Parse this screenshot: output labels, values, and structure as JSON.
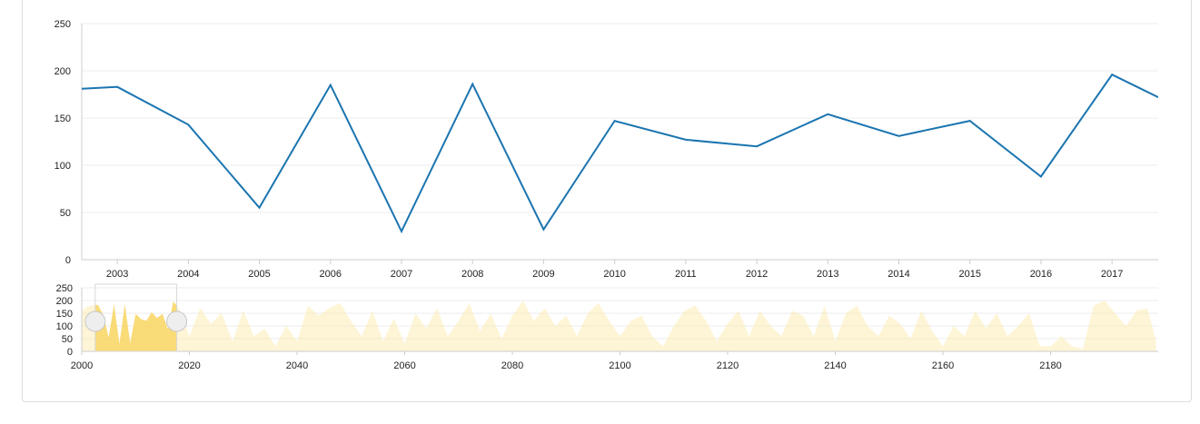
{
  "colors": {
    "line": "#1b75b0",
    "grid": "#ececec",
    "axis": "#cccccc",
    "brush_fill": "#fce8a6",
    "brush_selection": "#f8d45a",
    "handle": "#eeeeee"
  },
  "chart_data": [
    {
      "type": "line",
      "title": "",
      "xlabel": "",
      "ylabel": "",
      "ylim": [
        0,
        250
      ],
      "xlim": [
        2002.5,
        2017.65
      ],
      "yticks": [
        "0",
        "50",
        "100",
        "150",
        "200",
        "250"
      ],
      "xticks": [
        "2003",
        "2004",
        "2005",
        "2006",
        "2007",
        "2008",
        "2009",
        "2010",
        "2011",
        "2012",
        "2013",
        "2014",
        "2015",
        "2016",
        "2017"
      ],
      "grid": true,
      "series": [
        {
          "x": [
            2002.5,
            2003,
            2004,
            2005,
            2006,
            2007,
            2008,
            2009,
            2010,
            2011,
            2012,
            2013,
            2014,
            2015,
            2016,
            2017,
            2017.65
          ],
          "values": [
            181,
            183,
            143,
            55,
            185,
            30,
            186,
            32,
            147,
            127,
            120,
            154,
            131,
            147,
            88,
            196,
            172
          ]
        }
      ]
    },
    {
      "type": "area",
      "title": "",
      "xlabel": "",
      "ylabel": "",
      "ylim": [
        0,
        250
      ],
      "xlim": [
        2000,
        2200
      ],
      "yticks": [
        "0",
        "50",
        "100",
        "150",
        "200",
        "250"
      ],
      "xticks": [
        "2000",
        "2020",
        "2040",
        "2060",
        "2080",
        "2100",
        "2120",
        "2140",
        "2160",
        "2180"
      ],
      "selection": [
        2002.5,
        2017.65
      ],
      "series": [
        {
          "x": [
            2000,
            2001,
            2002,
            2003,
            2004,
            2005,
            2006,
            2007,
            2008,
            2009,
            2010,
            2011,
            2012,
            2013,
            2014,
            2015,
            2016,
            2017,
            2018,
            2019,
            2020,
            2022,
            2024,
            2026,
            2028,
            2030,
            2032,
            2034,
            2036,
            2038,
            2040,
            2042,
            2044,
            2046,
            2048,
            2050,
            2052,
            2054,
            2056,
            2058,
            2060,
            2062,
            2064,
            2066,
            2068,
            2070,
            2072,
            2074,
            2076,
            2078,
            2080,
            2082,
            2084,
            2086,
            2088,
            2090,
            2092,
            2094,
            2096,
            2098,
            2100,
            2102,
            2104,
            2106,
            2108,
            2110,
            2112,
            2114,
            2116,
            2118,
            2120,
            2122,
            2124,
            2126,
            2128,
            2130,
            2132,
            2134,
            2136,
            2138,
            2140,
            2142,
            2144,
            2146,
            2148,
            2150,
            2152,
            2154,
            2156,
            2158,
            2160,
            2162,
            2164,
            2166,
            2168,
            2170,
            2172,
            2174,
            2176,
            2178,
            2180,
            2182,
            2184,
            2186,
            2188,
            2190,
            2192,
            2194,
            2196,
            2198,
            2199.6
          ],
          "values": [
            160,
            175,
            181,
            183,
            143,
            55,
            185,
            30,
            186,
            32,
            147,
            127,
            120,
            154,
            131,
            147,
            88,
            196,
            172,
            120,
            60,
            170,
            110,
            150,
            40,
            160,
            60,
            90,
            20,
            100,
            40,
            180,
            140,
            170,
            190,
            120,
            60,
            160,
            40,
            130,
            30,
            150,
            90,
            170,
            60,
            120,
            190,
            80,
            150,
            50,
            140,
            200,
            120,
            170,
            100,
            140,
            60,
            150,
            190,
            120,
            60,
            120,
            140,
            60,
            20,
            100,
            160,
            180,
            120,
            40,
            110,
            160,
            60,
            160,
            100,
            60,
            160,
            140,
            60,
            180,
            40,
            150,
            180,
            100,
            60,
            140,
            110,
            50,
            160,
            80,
            20,
            100,
            60,
            160,
            90,
            150,
            60,
            100,
            150,
            20,
            20,
            60,
            20,
            10,
            180,
            200,
            150,
            100,
            160,
            170,
            40
          ]
        }
      ]
    }
  ]
}
